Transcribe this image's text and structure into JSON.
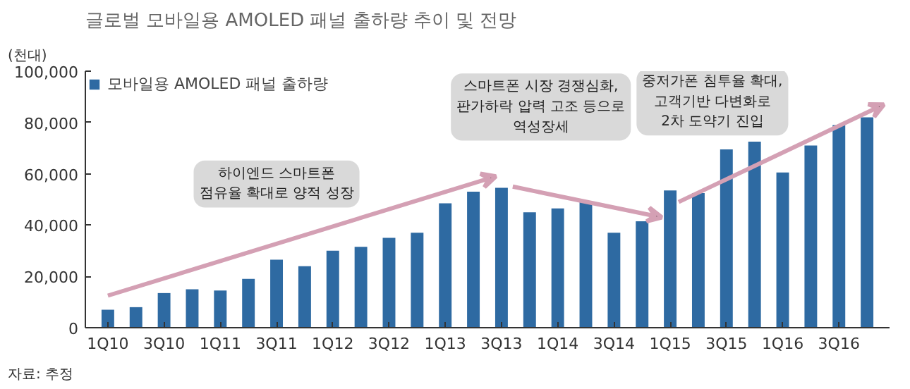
{
  "chart_data": {
    "type": "bar",
    "title": "글로벌 모바일용 AMOLED 패널 출하량 추이 및 전망",
    "ylabel": "(천대)",
    "categories": [
      "1Q10",
      null,
      "3Q10",
      null,
      "1Q11",
      null,
      "3Q11",
      null,
      "1Q12",
      null,
      "3Q12",
      null,
      "1Q13",
      null,
      "3Q13",
      null,
      "1Q14",
      null,
      "3Q14",
      null,
      "1Q15",
      null,
      "3Q15",
      null,
      "1Q16",
      null,
      "3Q16",
      null
    ],
    "series": [
      {
        "name": "모바일용 AMOLED 패널 출하량",
        "color": "#2e6aa2",
        "values": [
          7000,
          8000,
          13500,
          15000,
          14500,
          19000,
          26500,
          24000,
          30000,
          31500,
          35000,
          37000,
          48500,
          53000,
          54500,
          45000,
          46500,
          49000,
          37000,
          41500,
          53500,
          52500,
          69500,
          72500,
          60500,
          71000,
          79000,
          82000
        ]
      }
    ],
    "ylim": [
      0,
      100000
    ],
    "yticks": [
      {
        "value": 0,
        "label": "0"
      },
      {
        "value": 20000,
        "label": "20,000"
      },
      {
        "value": 40000,
        "label": "40,000"
      },
      {
        "value": 60000,
        "label": "60,000"
      },
      {
        "value": 80000,
        "label": "80,000"
      },
      {
        "value": 100000,
        "label": "100,000"
      }
    ],
    "grid": false,
    "legend": "top left",
    "annotations": [
      "하이엔드 스마트폰\n점유율 확대로 양적 성장",
      "스마트폰 시장 경쟁심화,\n판가하락 압력 고조 등으로\n역성장세",
      "중저가폰 침투율 확대,\n고객기반 다변화로\n2차 도약기 진입",
      "자료: 추정"
    ]
  }
}
